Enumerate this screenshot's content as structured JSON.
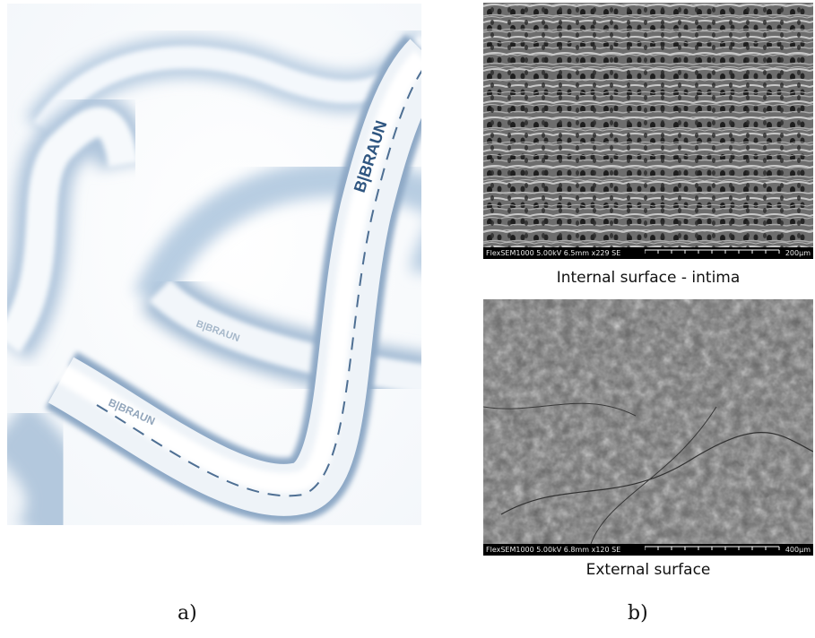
{
  "photo": {
    "brand_text": "B|BRAUN",
    "description_icon": "tubing-photo"
  },
  "sem_internal": {
    "info": "FlexSEM1000 5.00kV 6.5mm x229 SE",
    "scale": "200μm",
    "caption": "Internal surface - intima"
  },
  "sem_external": {
    "info": "FlexSEM1000 5.00kV 6.8mm x120 SE",
    "scale": "400μm",
    "caption": "External surface"
  },
  "labels": {
    "a": "a)",
    "b": "b)"
  }
}
